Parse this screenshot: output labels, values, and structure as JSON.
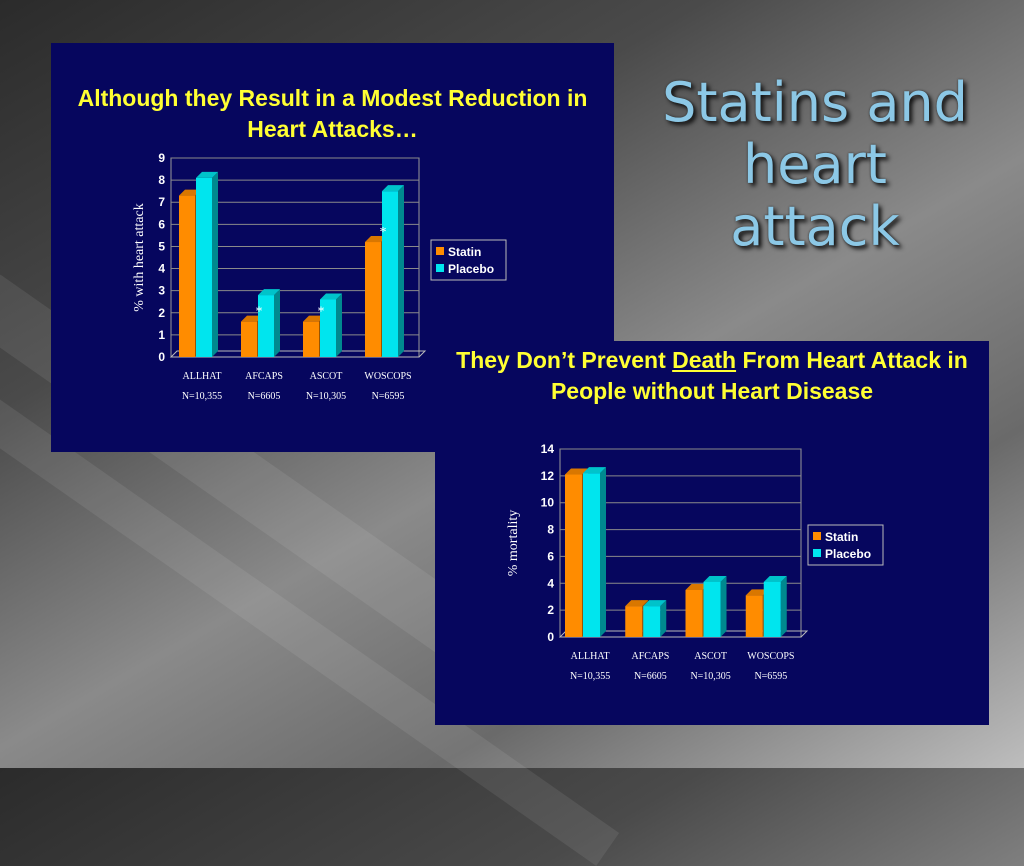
{
  "slide": {
    "title": "Statins and heart attack"
  },
  "chart_data": [
    {
      "type": "bar",
      "title": "Although they Result in a Modest Reduction in Heart Attacks…",
      "ylabel": "% with heart attack",
      "xlabel": "",
      "ylim": [
        0,
        9
      ],
      "yticks": [
        0,
        1,
        2,
        3,
        4,
        5,
        6,
        7,
        8,
        9
      ],
      "categories": [
        "ALLHAT",
        "AFCAPS",
        "ASCOT",
        "WOSCOPS"
      ],
      "subcategories": [
        "N=10,355",
        "N=6605",
        "N=10,305",
        "N=6595"
      ],
      "series": [
        {
          "name": "Statin",
          "color": "#ff8c00",
          "values": [
            7.3,
            1.6,
            1.6,
            5.2
          ]
        },
        {
          "name": "Placebo",
          "color": "#00e5ee",
          "values": [
            8.1,
            2.8,
            2.6,
            7.5
          ]
        }
      ],
      "annotations": [
        {
          "category": "AFCAPS",
          "text": "*"
        },
        {
          "category": "ASCOT",
          "text": "*"
        },
        {
          "category": "WOSCOPS",
          "text": "*"
        }
      ],
      "legend": "right",
      "grid": true
    },
    {
      "type": "bar",
      "title": "They Don’t Prevent Death From Heart Attack in People without Heart Disease",
      "title_parts": [
        "They Don’t Prevent ",
        "Death",
        " From Heart Attack in People without Heart Disease"
      ],
      "ylabel": "% mortality",
      "xlabel": "",
      "ylim": [
        0,
        14
      ],
      "yticks": [
        0,
        2,
        4,
        6,
        8,
        10,
        12,
        14
      ],
      "categories": [
        "ALLHAT",
        "AFCAPS",
        "ASCOT",
        "WOSCOPS"
      ],
      "subcategories": [
        "N=10,355",
        "N=6605",
        "N=10,305",
        "N=6595"
      ],
      "series": [
        {
          "name": "Statin",
          "color": "#ff8c00",
          "values": [
            12.1,
            2.3,
            3.5,
            3.1
          ]
        },
        {
          "name": "Placebo",
          "color": "#00e5ee",
          "values": [
            12.2,
            2.3,
            4.1,
            4.1
          ]
        }
      ],
      "legend": "right",
      "grid": true
    }
  ]
}
